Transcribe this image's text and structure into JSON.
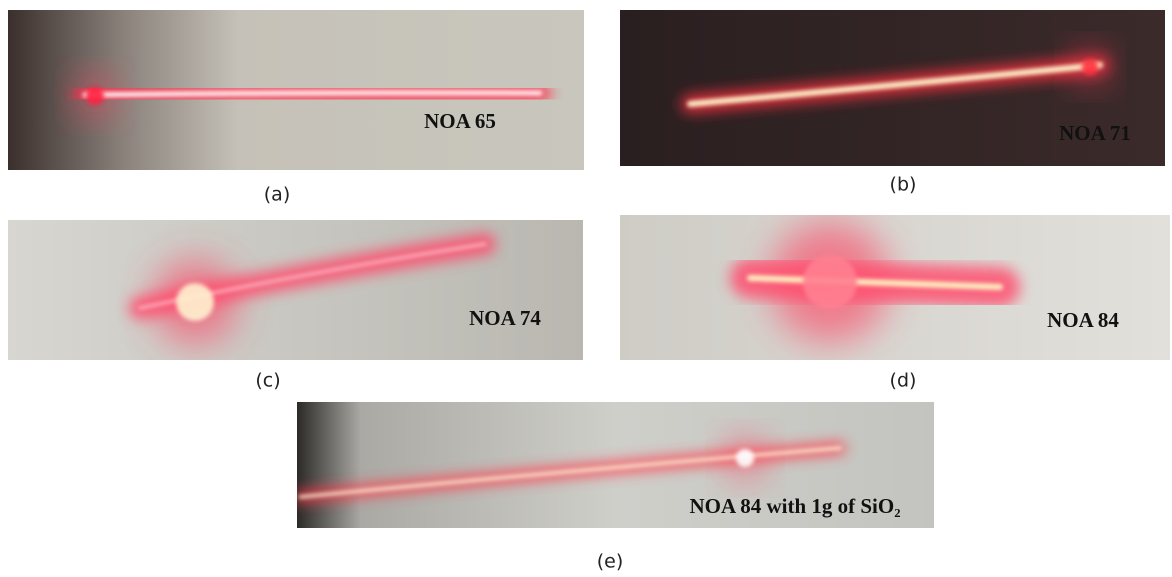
{
  "panels": [
    {
      "caption": "(a)",
      "label": "NOA 65"
    },
    {
      "caption": "(b)",
      "label": "NOA 71"
    },
    {
      "caption": "(c)",
      "label": "NOA 74"
    },
    {
      "caption": "(d)",
      "label": "NOA 84"
    },
    {
      "caption": "(e)",
      "label": "NOA 84 with 1g of SiO₂"
    }
  ]
}
